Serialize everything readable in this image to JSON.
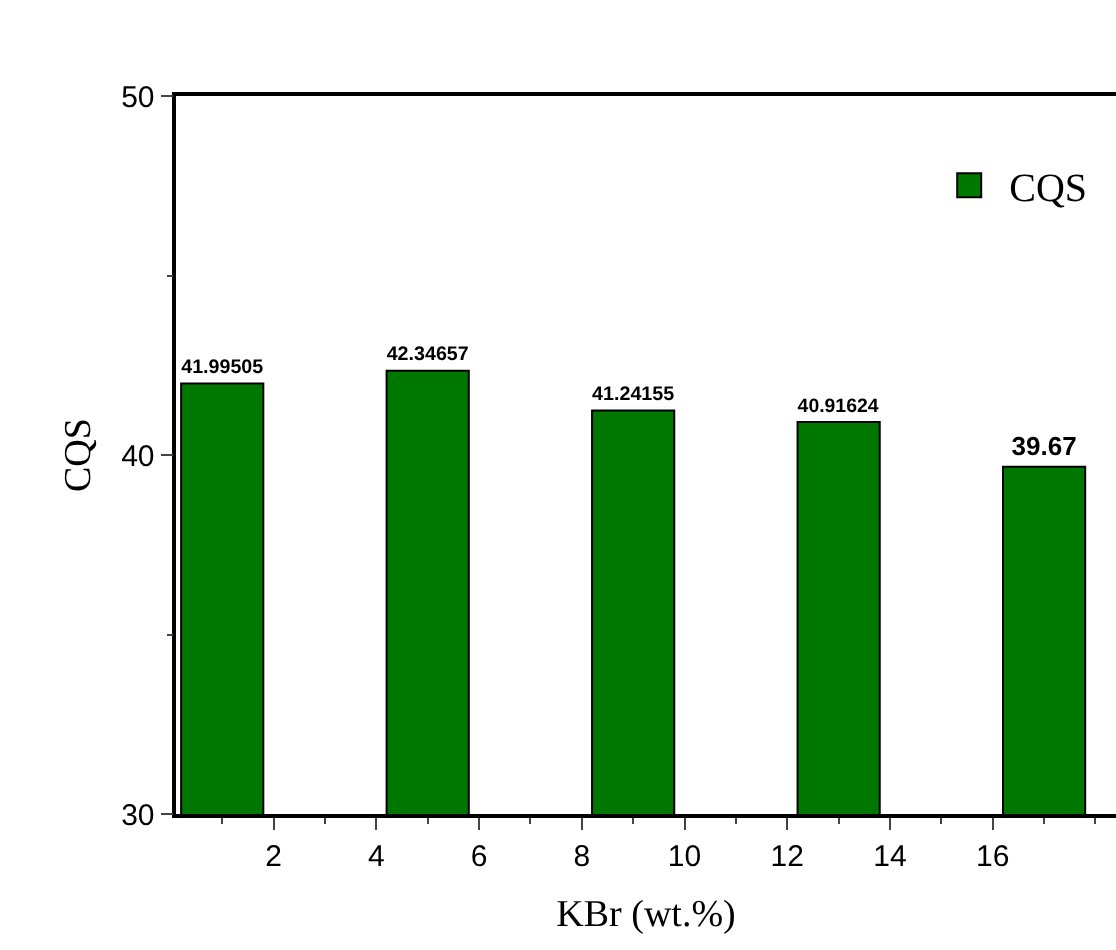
{
  "chart_data": {
    "type": "bar",
    "xlabel": "KBr (wt.%)",
    "ylabel": "CQS",
    "x": [
      1,
      5,
      9,
      13,
      17
    ],
    "series": [
      {
        "name": "CQS",
        "color": "#007800",
        "values": [
          41.99505,
          42.34657,
          41.24155,
          40.91624,
          39.67
        ]
      }
    ],
    "xlim": [
      0.1,
      18.4
    ],
    "xticks": [
      2,
      4,
      6,
      8,
      10,
      12,
      14,
      16
    ],
    "ylim": [
      30,
      50
    ],
    "yticks": [
      30,
      40,
      50
    ],
    "data_labels": true,
    "grid": false,
    "legend": "top right"
  }
}
